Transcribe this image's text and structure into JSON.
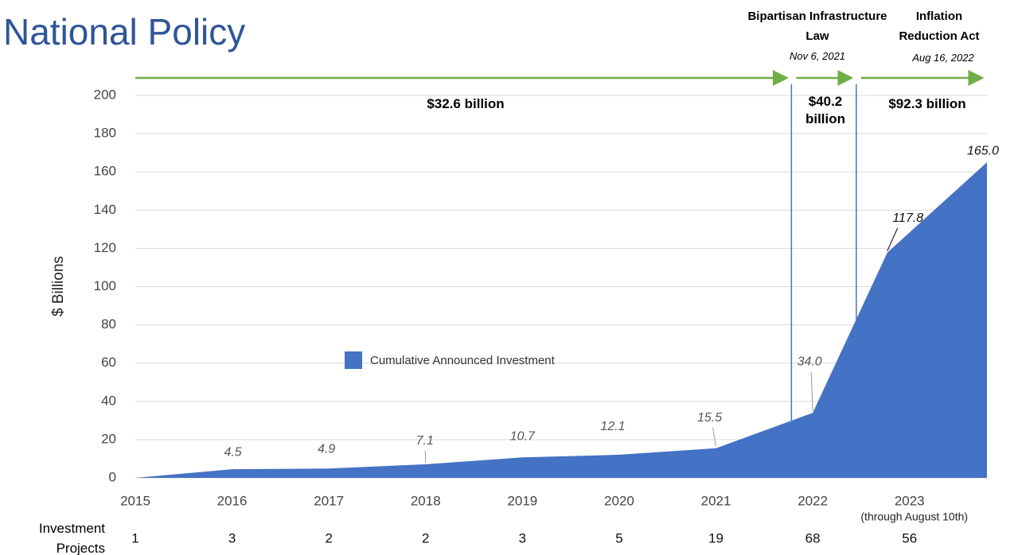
{
  "chart_data": {
    "type": "area",
    "title": "National Policy",
    "y_label": "$ Billions",
    "x": [
      2015,
      2016,
      2017,
      2018,
      2019,
      2020,
      2021,
      2022,
      2022.77,
      2023.8
    ],
    "series": [
      {
        "name": "Cumulative Announced Investment",
        "color": "#4472c4",
        "values": [
          0,
          4.5,
          4.9,
          7.1,
          10.7,
          12.1,
          15.5,
          34.0,
          117.8,
          165.0
        ],
        "value_labels": [
          null,
          "4.5",
          "4.9",
          "7.1",
          "10.7",
          "12.1",
          "15.5",
          "34.0",
          "117.8",
          "165.0"
        ]
      }
    ],
    "xlim": [
      2015,
      2023.8
    ],
    "xticks": [
      2015,
      2016,
      2017,
      2018,
      2019,
      2020,
      2021,
      2022,
      2023
    ],
    "xtick_note": "(through August 10th)",
    "ylim": [
      0,
      200
    ],
    "yticks": [
      0,
      20,
      40,
      60,
      80,
      100,
      120,
      140,
      160,
      180,
      200
    ],
    "grid": true,
    "legend": "center",
    "events": [
      {
        "name": "Bipartisan Infrastructure Law",
        "date": "Nov 6, 2021",
        "x": 2021.78
      },
      {
        "name": "Inflation Reduction Act",
        "date": "Aug 16, 2022",
        "x": 2022.45
      }
    ],
    "periods": [
      "$32.6 billion",
      "$40.2 billion",
      "$92.3 billion"
    ],
    "investment_projects": {
      "label": "Investment Projects",
      "values": [
        1,
        3,
        2,
        2,
        3,
        5,
        19,
        68,
        56
      ]
    }
  }
}
